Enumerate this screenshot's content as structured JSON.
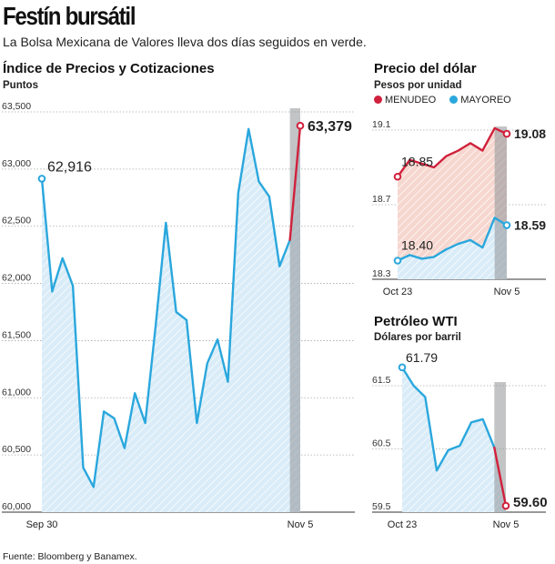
{
  "headline": "Festín bursátil",
  "subheadline": "La Bolsa Mexicana de Valores lleva dos días seguidos en verde.",
  "source": "Fuente: Bloomberg y Banamex.",
  "colors": {
    "blue": "#2aa7dd",
    "red": "#d0213c",
    "blueFill": "#d9ecf8",
    "redFill": "#f6d7cf",
    "grid": "#aaaaaa",
    "band": "#8f9498"
  },
  "chart_data": [
    {
      "id": "ipc",
      "type": "area",
      "title": "Índice de Precios y Cotizaciones",
      "subtitle": "Puntos",
      "ylim": [
        60000,
        63500
      ],
      "yticks": [
        60000,
        60500,
        61000,
        61500,
        62000,
        62500,
        63000,
        63500
      ],
      "ytick_labels": [
        "60,000",
        "60,500",
        "61,000",
        "61,500",
        "62,000",
        "62,500",
        "63,000",
        "63,500"
      ],
      "x_labels": [
        "Sep 30",
        "Nov 5"
      ],
      "series": [
        {
          "values": [
            62916,
            61930,
            62220,
            61980,
            60390,
            60220,
            60880,
            60820,
            60560,
            61040,
            60780,
            61620,
            62530,
            61750,
            61680,
            60780,
            61300,
            61510,
            61140,
            62790,
            63350,
            62890,
            62760,
            62150,
            62380,
            63379
          ]
        }
      ],
      "annotations": {
        "first": "62,916",
        "last": "63,379"
      }
    },
    {
      "id": "dolar",
      "type": "area",
      "title": "Precio del dólar",
      "subtitle": "Pesos por unidad",
      "ylim": [
        18.3,
        19.1
      ],
      "yticks": [
        18.3,
        18.7,
        19.1
      ],
      "ytick_labels": [
        "18.3",
        "18.7",
        "19.1"
      ],
      "x_labels": [
        "Oct 23",
        "Nov 5"
      ],
      "series": [
        {
          "name": "MENUDEO",
          "values": [
            18.85,
            18.94,
            18.92,
            18.9,
            18.96,
            18.99,
            19.03,
            18.99,
            19.11,
            19.08
          ]
        },
        {
          "name": "MAYOREO",
          "values": [
            18.4,
            18.43,
            18.41,
            18.42,
            18.46,
            18.49,
            18.51,
            18.47,
            18.63,
            18.59
          ]
        }
      ],
      "annotations": {
        "menudeo_first": "18.85",
        "menudeo_last": "19.08",
        "mayoreo_first": "18.40",
        "mayoreo_last": "18.59"
      }
    },
    {
      "id": "petroleo",
      "type": "area",
      "title": "Petróleo WTI",
      "subtitle": "Dólares por barril",
      "ylim": [
        59.5,
        61.5
      ],
      "yticks": [
        59.5,
        60.5,
        61.5
      ],
      "ytick_labels": [
        "59.5",
        "60.5",
        "61.5"
      ],
      "x_labels": [
        "Oct 23",
        "Nov 5"
      ],
      "series": [
        {
          "values": [
            61.79,
            61.5,
            61.32,
            60.16,
            60.48,
            60.55,
            60.92,
            60.97,
            60.52,
            59.6
          ]
        }
      ],
      "annotations": {
        "first": "61.79",
        "last": "59.60"
      }
    }
  ]
}
